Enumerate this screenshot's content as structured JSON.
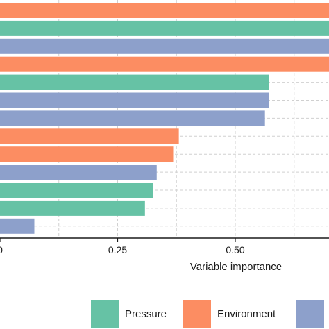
{
  "chart_data": {
    "type": "bar",
    "orientation": "horizontal",
    "xlabel": "Variable importance",
    "xlim": [
      0,
      0.78
    ],
    "xticks": [
      0,
      0.25,
      0.5
    ],
    "xtick_labels": [
      "0",
      "0.25",
      "0.50"
    ],
    "grid": "dashed vertical",
    "legend_position": "bottom",
    "legend": [
      {
        "label": "Pressure",
        "color": "#66c2a5"
      },
      {
        "label": "Environment",
        "color": "#fc8d62"
      },
      {
        "label": "",
        "color": "#8da0cb"
      }
    ],
    "bars": [
      {
        "group": 1,
        "value": 0.78
      },
      {
        "group": 0,
        "value": 0.78
      },
      {
        "group": 2,
        "value": 0.78
      },
      {
        "group": 1,
        "value": 0.78
      },
      {
        "group": 0,
        "value": 0.572
      },
      {
        "group": 2,
        "value": 0.571
      },
      {
        "group": 2,
        "value": 0.563
      },
      {
        "group": 1,
        "value": 0.38
      },
      {
        "group": 1,
        "value": 0.368
      },
      {
        "group": 2,
        "value": 0.333
      },
      {
        "group": 0,
        "value": 0.325
      },
      {
        "group": 0,
        "value": 0.308
      },
      {
        "group": 2,
        "value": 0.073
      }
    ]
  }
}
